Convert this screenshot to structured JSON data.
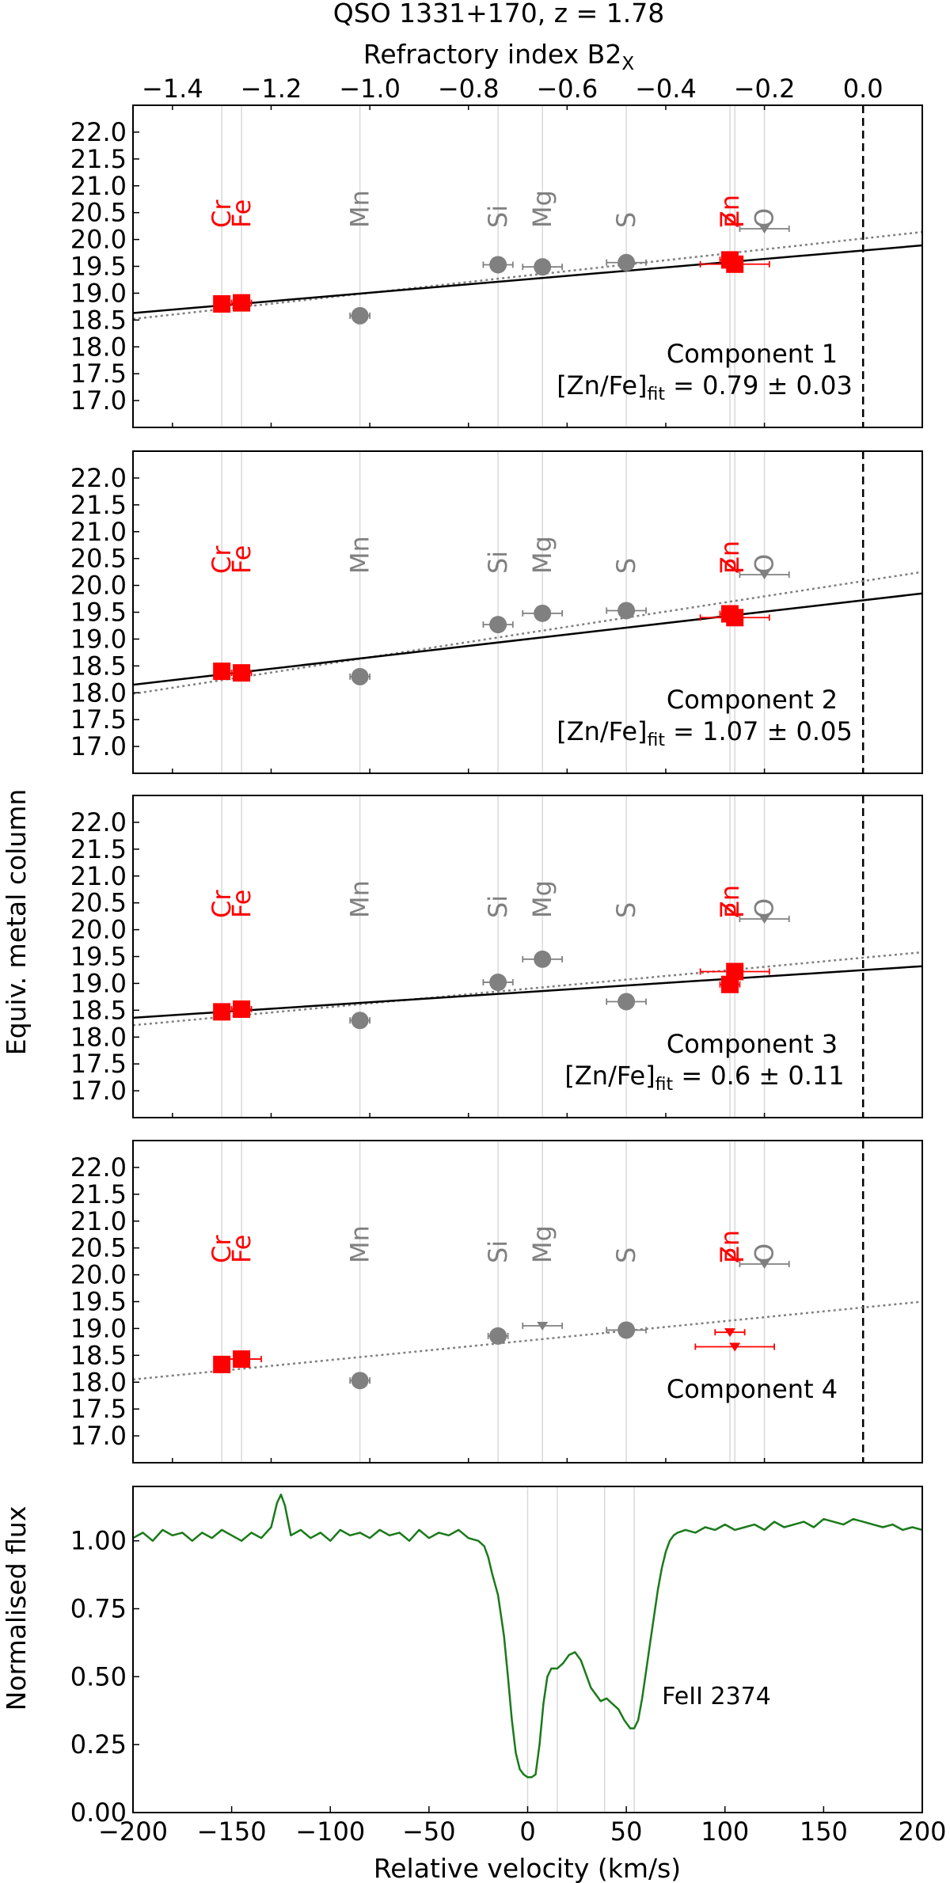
{
  "figure": {
    "title": "QSO 1331+170, z = 1.78",
    "top_axis_label": "Refractory index B2",
    "top_axis_label_sub": "X",
    "shared_ylabel": "Equiv. metal column",
    "bottom_ylabel": "Normalised flux",
    "bottom_xlabel": "Relative velocity (km/s)",
    "colors": {
      "refractory": "#ff0000",
      "volatile": "#808080",
      "fit": "#000000",
      "dotted": "#808080",
      "spectrum": "#1a7a1a"
    }
  },
  "chart_data": [
    {
      "type": "scatter",
      "panel": "Component 1",
      "xlim": [
        -1.48,
        0.12
      ],
      "ylim": [
        16.5,
        22.5
      ],
      "x_ticks": [
        "−1.4",
        "−1.2",
        "−1.0",
        "−0.8",
        "−0.6",
        "−0.4",
        "−0.2",
        "0.0"
      ],
      "y_ticks": [
        "17.0",
        "17.5",
        "18.0",
        "18.5",
        "19.0",
        "19.5",
        "20.0",
        "20.5",
        "21.0",
        "21.5",
        "22.0"
      ],
      "elements": [
        {
          "label": "Cr",
          "x": -1.3,
          "color": "red"
        },
        {
          "label": "Fe",
          "x": -1.26,
          "color": "red"
        },
        {
          "label": "Mn",
          "x": -1.02,
          "color": "gray"
        },
        {
          "label": "Si",
          "x": -0.74,
          "color": "gray"
        },
        {
          "label": "Mg",
          "x": -0.65,
          "color": "gray"
        },
        {
          "label": "S",
          "x": -0.48,
          "color": "gray"
        },
        {
          "label": "Zn",
          "x": -0.27,
          "color": "red"
        },
        {
          "label": "P",
          "x": -0.26,
          "color": "red"
        },
        {
          "label": "O",
          "x": -0.2,
          "color": "gray"
        }
      ],
      "points": [
        {
          "el": "Cr",
          "x": -1.3,
          "y": 18.8,
          "marker": "square",
          "color": "red",
          "xerr": 0
        },
        {
          "el": "Fe",
          "x": -1.26,
          "y": 18.82,
          "marker": "square",
          "color": "red",
          "xerr": 0.02
        },
        {
          "el": "Mn",
          "x": -1.02,
          "y": 18.58,
          "marker": "circle",
          "color": "gray",
          "xerr": 0.02
        },
        {
          "el": "Si",
          "x": -0.74,
          "y": 19.53,
          "marker": "circle",
          "color": "gray",
          "xerr": 0.03
        },
        {
          "el": "Mg",
          "x": -0.65,
          "y": 19.49,
          "marker": "circle",
          "color": "gray",
          "xerr": 0.04
        },
        {
          "el": "S",
          "x": -0.48,
          "y": 19.57,
          "marker": "circle",
          "color": "gray",
          "xerr": 0.04
        },
        {
          "el": "Zn",
          "x": -0.27,
          "y": 19.62,
          "marker": "square",
          "color": "red",
          "xerr": 0.02
        },
        {
          "el": "P",
          "x": -0.26,
          "y": 19.54,
          "marker": "square",
          "color": "red",
          "xerr": 0.07
        },
        {
          "el": "O",
          "x": -0.2,
          "y": 20.2,
          "marker": "tri-down",
          "color": "gray",
          "xerr": 0.05
        }
      ],
      "fit_solid": [
        [
          -1.48,
          18.63
        ],
        [
          0.12,
          19.89
        ]
      ],
      "fit_dotted": [
        [
          -1.48,
          18.52
        ],
        [
          0.12,
          20.14
        ]
      ],
      "annotation": "Component 1",
      "fit_text": "[Zn/Fe]",
      "fit_text_sub": "fit",
      "fit_value": " = 0.79 ± 0.03"
    },
    {
      "type": "scatter",
      "panel": "Component 2",
      "xlim": [
        -1.48,
        0.12
      ],
      "ylim": [
        16.5,
        22.5
      ],
      "x_ticks": [
        "−1.4",
        "−1.2",
        "−1.0",
        "−0.8",
        "−0.6",
        "−0.4",
        "−0.2",
        "0.0"
      ],
      "y_ticks": [
        "17.0",
        "17.5",
        "18.0",
        "18.5",
        "19.0",
        "19.5",
        "20.0",
        "20.5",
        "21.0",
        "21.5",
        "22.0"
      ],
      "elements": [
        {
          "label": "Cr",
          "x": -1.3,
          "color": "red"
        },
        {
          "label": "Fe",
          "x": -1.26,
          "color": "red"
        },
        {
          "label": "Mn",
          "x": -1.02,
          "color": "gray"
        },
        {
          "label": "Si",
          "x": -0.74,
          "color": "gray"
        },
        {
          "label": "Mg",
          "x": -0.65,
          "color": "gray"
        },
        {
          "label": "S",
          "x": -0.48,
          "color": "gray"
        },
        {
          "label": "Zn",
          "x": -0.27,
          "color": "red"
        },
        {
          "label": "P",
          "x": -0.26,
          "color": "red"
        },
        {
          "label": "O",
          "x": -0.2,
          "color": "gray"
        }
      ],
      "points": [
        {
          "el": "Cr",
          "x": -1.3,
          "y": 18.4,
          "marker": "square",
          "color": "red",
          "xerr": 0
        },
        {
          "el": "Fe",
          "x": -1.26,
          "y": 18.37,
          "marker": "square",
          "color": "red",
          "xerr": 0.02
        },
        {
          "el": "Mn",
          "x": -1.02,
          "y": 18.3,
          "marker": "circle",
          "color": "gray",
          "xerr": 0.02
        },
        {
          "el": "Si",
          "x": -0.74,
          "y": 19.27,
          "marker": "circle",
          "color": "gray",
          "xerr": 0.03
        },
        {
          "el": "Mg",
          "x": -0.65,
          "y": 19.48,
          "marker": "circle",
          "color": "gray",
          "xerr": 0.04
        },
        {
          "el": "S",
          "x": -0.48,
          "y": 19.53,
          "marker": "circle",
          "color": "gray",
          "xerr": 0.04
        },
        {
          "el": "Zn",
          "x": -0.27,
          "y": 19.47,
          "marker": "square",
          "color": "red",
          "xerr": 0.02
        },
        {
          "el": "P",
          "x": -0.26,
          "y": 19.4,
          "marker": "square",
          "color": "red",
          "xerr": 0.07
        },
        {
          "el": "O",
          "x": -0.2,
          "y": 20.2,
          "marker": "tri-down",
          "color": "gray",
          "xerr": 0.05
        }
      ],
      "fit_solid": [
        [
          -1.48,
          18.15
        ],
        [
          0.12,
          19.85
        ]
      ],
      "fit_dotted": [
        [
          -1.48,
          17.98
        ],
        [
          0.12,
          20.25
        ]
      ],
      "annotation": "Component 2",
      "fit_text": "[Zn/Fe]",
      "fit_text_sub": "fit",
      "fit_value": " = 1.07 ± 0.05"
    },
    {
      "type": "scatter",
      "panel": "Component 3",
      "xlim": [
        -1.48,
        0.12
      ],
      "ylim": [
        16.5,
        22.5
      ],
      "x_ticks": [
        "−1.4",
        "−1.2",
        "−1.0",
        "−0.8",
        "−0.6",
        "−0.4",
        "−0.2",
        "0.0"
      ],
      "y_ticks": [
        "17.0",
        "17.5",
        "18.0",
        "18.5",
        "19.0",
        "19.5",
        "20.0",
        "20.5",
        "21.0",
        "21.5",
        "22.0"
      ],
      "elements": [
        {
          "label": "Cr",
          "x": -1.3,
          "color": "red"
        },
        {
          "label": "Fe",
          "x": -1.26,
          "color": "red"
        },
        {
          "label": "Mn",
          "x": -1.02,
          "color": "gray"
        },
        {
          "label": "Si",
          "x": -0.74,
          "color": "gray"
        },
        {
          "label": "Mg",
          "x": -0.65,
          "color": "gray"
        },
        {
          "label": "S",
          "x": -0.48,
          "color": "gray"
        },
        {
          "label": "Zn",
          "x": -0.27,
          "color": "red"
        },
        {
          "label": "P",
          "x": -0.26,
          "color": "red"
        },
        {
          "label": "O",
          "x": -0.2,
          "color": "gray"
        }
      ],
      "points": [
        {
          "el": "Cr",
          "x": -1.3,
          "y": 18.47,
          "marker": "square",
          "color": "red",
          "xerr": 0
        },
        {
          "el": "Fe",
          "x": -1.26,
          "y": 18.52,
          "marker": "square",
          "color": "red",
          "xerr": 0.02
        },
        {
          "el": "Mn",
          "x": -1.02,
          "y": 18.31,
          "marker": "circle",
          "color": "gray",
          "xerr": 0.02
        },
        {
          "el": "Si",
          "x": -0.74,
          "y": 19.02,
          "marker": "circle",
          "color": "gray",
          "xerr": 0.03
        },
        {
          "el": "Mg",
          "x": -0.65,
          "y": 19.45,
          "marker": "circle",
          "color": "gray",
          "xerr": 0.04
        },
        {
          "el": "S",
          "x": -0.48,
          "y": 18.66,
          "marker": "circle",
          "color": "gray",
          "xerr": 0.04
        },
        {
          "el": "Zn",
          "x": -0.27,
          "y": 18.98,
          "marker": "square",
          "color": "red",
          "xerr": 0.02
        },
        {
          "el": "P",
          "x": -0.26,
          "y": 19.22,
          "marker": "square",
          "color": "red",
          "xerr": 0.07
        },
        {
          "el": "O",
          "x": -0.2,
          "y": 20.2,
          "marker": "tri-down",
          "color": "gray",
          "xerr": 0.05
        }
      ],
      "fit_solid": [
        [
          -1.48,
          18.36
        ],
        [
          0.12,
          19.32
        ]
      ],
      "fit_dotted": [
        [
          -1.48,
          18.22
        ],
        [
          0.12,
          19.58
        ]
      ],
      "annotation": "Component 3",
      "fit_text": "[Zn/Fe]",
      "fit_text_sub": "fit",
      "fit_value": " = 0.6 ± 0.11"
    },
    {
      "type": "scatter",
      "panel": "Component 4",
      "xlim": [
        -1.48,
        0.12
      ],
      "ylim": [
        16.5,
        22.5
      ],
      "x_ticks": [
        "−1.4",
        "−1.2",
        "−1.0",
        "−0.8",
        "−0.6",
        "−0.4",
        "−0.2",
        "0.0"
      ],
      "y_ticks": [
        "17.0",
        "17.5",
        "18.0",
        "18.5",
        "19.0",
        "19.5",
        "20.0",
        "20.5",
        "21.0",
        "21.5",
        "22.0"
      ],
      "elements": [
        {
          "label": "Cr",
          "x": -1.3,
          "color": "red"
        },
        {
          "label": "Fe",
          "x": -1.26,
          "color": "red"
        },
        {
          "label": "Mn",
          "x": -1.02,
          "color": "gray"
        },
        {
          "label": "Si",
          "x": -0.74,
          "color": "gray"
        },
        {
          "label": "Mg",
          "x": -0.65,
          "color": "gray"
        },
        {
          "label": "S",
          "x": -0.48,
          "color": "gray"
        },
        {
          "label": "Zn",
          "x": -0.27,
          "color": "red"
        },
        {
          "label": "P",
          "x": -0.26,
          "color": "red"
        },
        {
          "label": "O",
          "x": -0.2,
          "color": "gray"
        }
      ],
      "points": [
        {
          "el": "Cr",
          "x": -1.3,
          "y": 18.33,
          "marker": "square",
          "color": "red",
          "xerr": 0
        },
        {
          "el": "Fe",
          "x": -1.26,
          "y": 18.43,
          "marker": "square",
          "color": "red",
          "xerr": 0.04
        },
        {
          "el": "Mn",
          "x": -1.02,
          "y": 18.03,
          "marker": "circle",
          "color": "gray",
          "xerr": 0.02
        },
        {
          "el": "Si",
          "x": -0.74,
          "y": 18.86,
          "marker": "circle",
          "color": "gray",
          "xerr": 0.02
        },
        {
          "el": "Mg",
          "x": -0.65,
          "y": 19.05,
          "marker": "tri-down",
          "color": "gray",
          "xerr": 0.04
        },
        {
          "el": "S",
          "x": -0.48,
          "y": 18.97,
          "marker": "circle",
          "color": "gray",
          "xerr": 0.04
        },
        {
          "el": "Zn",
          "x": -0.27,
          "y": 18.93,
          "marker": "tri-down",
          "color": "red",
          "xerr": 0.03
        },
        {
          "el": "P",
          "x": -0.26,
          "y": 18.66,
          "marker": "tri-down",
          "color": "red",
          "xerr": 0.08
        },
        {
          "el": "O",
          "x": -0.2,
          "y": 20.2,
          "marker": "tri-down",
          "color": "gray",
          "xerr": 0.05
        }
      ],
      "fit_solid": null,
      "fit_dotted": [
        [
          -1.48,
          18.05
        ],
        [
          0.12,
          19.5
        ]
      ],
      "annotation": "Component 4",
      "fit_text": "",
      "fit_text_sub": "",
      "fit_value": ""
    },
    {
      "type": "line",
      "panel": "spectrum",
      "xlim": [
        -200,
        200
      ],
      "ylim": [
        0.0,
        1.2
      ],
      "x_ticks": [
        "−200",
        "−150",
        "−100",
        "−50",
        "0",
        "50",
        "100",
        "150",
        "200"
      ],
      "y_ticks": [
        "0.00",
        "0.25",
        "0.50",
        "0.75",
        "1.00"
      ],
      "component_velocities": [
        0,
        15,
        39,
        54
      ],
      "annotation": "FeII 2374",
      "x": [
        -200,
        -195,
        -190,
        -185,
        -180,
        -175,
        -170,
        -165,
        -160,
        -155,
        -150,
        -145,
        -140,
        -135,
        -130,
        -127,
        -125,
        -123,
        -120,
        -115,
        -110,
        -105,
        -100,
        -95,
        -90,
        -85,
        -80,
        -75,
        -70,
        -65,
        -60,
        -55,
        -50,
        -45,
        -40,
        -35,
        -30,
        -25,
        -22,
        -20,
        -18,
        -15,
        -12,
        -10,
        -8,
        -6,
        -4,
        -2,
        0,
        2,
        4,
        6,
        8,
        10,
        12,
        15,
        18,
        21,
        24,
        27,
        30,
        32,
        35,
        37,
        40,
        43,
        46,
        49,
        52,
        54,
        56,
        58,
        60,
        62,
        64,
        66,
        68,
        70,
        72,
        74,
        76,
        80,
        85,
        90,
        95,
        100,
        105,
        110,
        115,
        120,
        125,
        130,
        135,
        140,
        145,
        150,
        155,
        160,
        165,
        170,
        175,
        180,
        185,
        190,
        195,
        200
      ],
      "y": [
        1.01,
        1.03,
        1.0,
        1.04,
        1.02,
        1.03,
        1.0,
        1.03,
        1.01,
        1.04,
        1.02,
        1.0,
        1.03,
        1.01,
        1.05,
        1.14,
        1.17,
        1.13,
        1.02,
        1.04,
        1.01,
        1.03,
        1.0,
        1.04,
        1.02,
        1.03,
        1.01,
        1.04,
        1.02,
        1.03,
        1.0,
        1.04,
        1.01,
        1.03,
        1.02,
        1.04,
        1.01,
        1.0,
        0.98,
        0.94,
        0.88,
        0.8,
        0.65,
        0.5,
        0.34,
        0.22,
        0.16,
        0.14,
        0.13,
        0.13,
        0.14,
        0.25,
        0.4,
        0.5,
        0.53,
        0.53,
        0.55,
        0.58,
        0.59,
        0.56,
        0.5,
        0.46,
        0.43,
        0.41,
        0.42,
        0.4,
        0.38,
        0.34,
        0.31,
        0.31,
        0.34,
        0.42,
        0.52,
        0.62,
        0.72,
        0.82,
        0.9,
        0.96,
        1.0,
        1.02,
        1.03,
        1.04,
        1.03,
        1.05,
        1.04,
        1.06,
        1.04,
        1.05,
        1.06,
        1.04,
        1.07,
        1.05,
        1.06,
        1.07,
        1.05,
        1.08,
        1.07,
        1.06,
        1.08,
        1.07,
        1.06,
        1.05,
        1.06,
        1.04,
        1.05,
        1.04
      ]
    }
  ]
}
